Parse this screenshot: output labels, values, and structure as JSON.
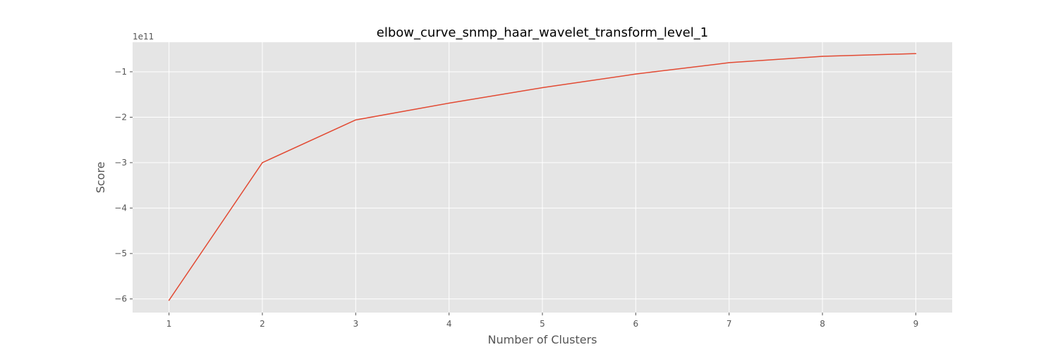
{
  "chart_data": {
    "type": "line",
    "title": "elbow_curve_snmp_haar_wavelet_transform_level_1",
    "xlabel": "Number of Clusters",
    "ylabel": "Score",
    "y_offset_label": "1e11",
    "x": [
      1,
      2,
      3,
      4,
      5,
      6,
      7,
      8,
      9
    ],
    "series": [
      {
        "values": [
          -6.03,
          -3.0,
          -2.06,
          -1.69,
          -1.35,
          -1.05,
          -0.8,
          -0.66,
          -0.6
        ]
      }
    ],
    "xticks": [
      1,
      2,
      3,
      4,
      5,
      6,
      7,
      8,
      9
    ],
    "xtick_labels": [
      "1",
      "2",
      "3",
      "4",
      "5",
      "6",
      "7",
      "8",
      "9"
    ],
    "yticks": [
      -6,
      -5,
      -4,
      -3,
      -2,
      -1
    ],
    "ytick_labels": [
      "−6",
      "−5",
      "−4",
      "−3",
      "−2",
      "−1"
    ],
    "xlim": [
      0.61,
      9.39
    ],
    "ylim": [
      -6.3,
      -0.35
    ],
    "grid": true,
    "colors": {
      "line": "#E24A33",
      "plot_bg": "#E5E5E5",
      "grid": "#FFFFFF"
    }
  }
}
